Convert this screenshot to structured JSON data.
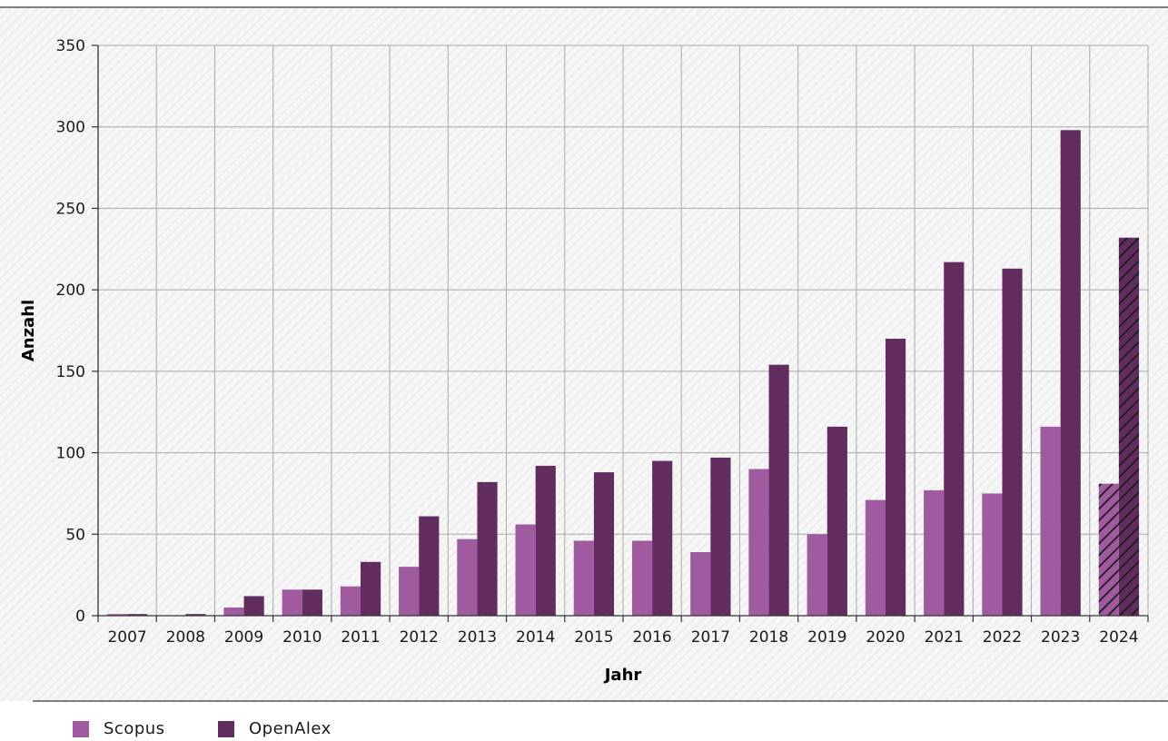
{
  "chart_data": {
    "type": "bar",
    "categories": [
      "2007",
      "2008",
      "2009",
      "2010",
      "2011",
      "2012",
      "2013",
      "2014",
      "2015",
      "2016",
      "2017",
      "2018",
      "2019",
      "2020",
      "2021",
      "2022",
      "2023",
      "2024"
    ],
    "series": [
      {
        "name": "Scopus",
        "color": "#a05aa0",
        "values": [
          1,
          0,
          5,
          16,
          18,
          30,
          47,
          56,
          46,
          46,
          39,
          90,
          50,
          71,
          77,
          75,
          116,
          81
        ]
      },
      {
        "name": "OpenAlex",
        "color": "#612c5e",
        "values": [
          1,
          1,
          12,
          16,
          33,
          61,
          82,
          92,
          88,
          95,
          97,
          154,
          116,
          170,
          217,
          213,
          298,
          232
        ]
      }
    ],
    "hatched_category": "2024",
    "xlabel": "Jahr",
    "ylabel": "Anzahl",
    "ylim": [
      0,
      350
    ],
    "yticks": [
      0,
      50,
      100,
      150,
      200,
      250,
      300,
      350
    ],
    "grid": true,
    "legend_position": "bottom-left"
  }
}
